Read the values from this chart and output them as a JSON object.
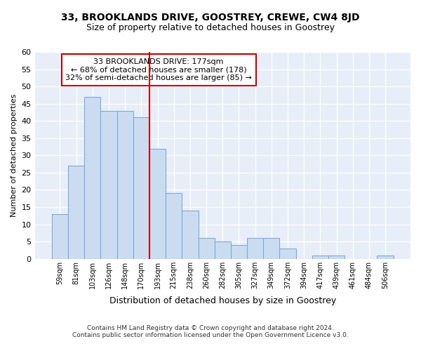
{
  "title1": "33, BROOKLANDS DRIVE, GOOSTREY, CREWE, CW4 8JD",
  "title2": "Size of property relative to detached houses in Goostrey",
  "xlabel": "Distribution of detached houses by size in Goostrey",
  "ylabel": "Number of detached properties",
  "footnote1": "Contains HM Land Registry data © Crown copyright and database right 2024.",
  "footnote2": "Contains public sector information licensed under the Open Government Licence v3.0.",
  "categories": [
    "59sqm",
    "81sqm",
    "103sqm",
    "126sqm",
    "148sqm",
    "170sqm",
    "193sqm",
    "215sqm",
    "238sqm",
    "260sqm",
    "282sqm",
    "305sqm",
    "327sqm",
    "349sqm",
    "372sqm",
    "394sqm",
    "417sqm",
    "439sqm",
    "461sqm",
    "484sqm",
    "506sqm"
  ],
  "values": [
    13,
    27,
    47,
    43,
    43,
    41,
    32,
    19,
    14,
    6,
    5,
    4,
    6,
    6,
    3,
    0,
    1,
    1,
    0,
    0,
    1
  ],
  "bar_color": "#ccdcf0",
  "bar_edge_color": "#7aabda",
  "vline_after_index": 5,
  "vline_color": "#cc0000",
  "annotation_line1": "33 BROOKLANDS DRIVE: 177sqm",
  "annotation_line2": "← 68% of detached houses are smaller (178)",
  "annotation_line3": "32% of semi-detached houses are larger (85) →",
  "annotation_box_color": "#cc0000",
  "fig_bg_color": "#ffffff",
  "plot_bg_color": "#e8eef8",
  "ylim": [
    0,
    60
  ],
  "yticks": [
    0,
    5,
    10,
    15,
    20,
    25,
    30,
    35,
    40,
    45,
    50,
    55,
    60
  ]
}
